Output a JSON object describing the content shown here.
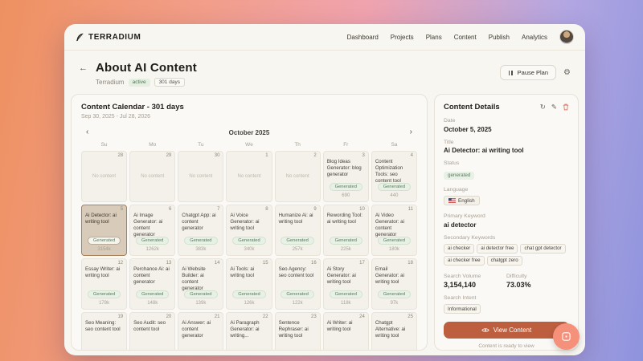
{
  "nav": {
    "brand": "TERRADIUM",
    "items": [
      "Dashboard",
      "Projects",
      "Plans",
      "Content",
      "Publish",
      "Analytics"
    ]
  },
  "header": {
    "title": "About AI Content",
    "project": "Terradium",
    "status_badge": "active",
    "days_badge": "301 days",
    "pause_button": "Pause Plan"
  },
  "calendar": {
    "title": "Content Calendar - 301 days",
    "date_range": "Sep 30, 2025 - Jul 28, 2026",
    "month": "October 2025",
    "weekdays": [
      "Su",
      "Mo",
      "Tu",
      "We",
      "Th",
      "Fr",
      "Sa"
    ],
    "no_content_label": "No content",
    "generated_label": "Generated",
    "cells": [
      {
        "day": "28",
        "type": "empty"
      },
      {
        "day": "29",
        "type": "empty"
      },
      {
        "day": "30",
        "type": "empty"
      },
      {
        "day": "1",
        "type": "empty"
      },
      {
        "day": "2",
        "type": "empty"
      },
      {
        "day": "3",
        "type": "content",
        "title": "Blog Ideas Generator: blog generator",
        "value": "690"
      },
      {
        "day": "4",
        "type": "content",
        "title": "Content Optimization Tools: seo content tool",
        "value": "440"
      },
      {
        "day": "5",
        "type": "content",
        "title": "Ai Detector: ai writing tool",
        "value": "3154k",
        "selected": true
      },
      {
        "day": "6",
        "type": "content",
        "title": "Ai Image Generator: ai content generator",
        "value": "1262k"
      },
      {
        "day": "7",
        "type": "content",
        "title": "Chatgpt App: ai content generator",
        "value": "383k"
      },
      {
        "day": "8",
        "type": "content",
        "title": "Ai Voice Generator: ai writing tool",
        "value": "340k"
      },
      {
        "day": "9",
        "type": "content",
        "title": "Humanize Ai: ai writing tool",
        "value": "257k"
      },
      {
        "day": "10",
        "type": "content",
        "title": "Rewording Tool: ai writing tool",
        "value": "225k"
      },
      {
        "day": "11",
        "type": "content",
        "title": "Ai Video Generator: ai content generator",
        "value": "180k"
      },
      {
        "day": "12",
        "type": "content",
        "title": "Essay Writer: ai writing tool",
        "value": "178k"
      },
      {
        "day": "13",
        "type": "content",
        "title": "Perchance Ai: ai content generator",
        "value": "148k"
      },
      {
        "day": "14",
        "type": "content",
        "title": "Ai Website Builder: ai content generator",
        "value": "139k"
      },
      {
        "day": "15",
        "type": "content",
        "title": "Ai Tools: ai writing tool",
        "value": "126k"
      },
      {
        "day": "16",
        "type": "content",
        "title": "Seo Agency: seo content tool",
        "value": "122k"
      },
      {
        "day": "17",
        "type": "content",
        "title": "Ai Story Generator: ai writing tool",
        "value": "118k"
      },
      {
        "day": "18",
        "type": "content",
        "title": "Email Generator: ai writing tool",
        "value": "97k"
      },
      {
        "day": "19",
        "type": "content",
        "title": "Seo Meaning: seo content tool"
      },
      {
        "day": "20",
        "type": "content",
        "title": "Seo Audit: seo content tool"
      },
      {
        "day": "21",
        "type": "content",
        "title": "Ai Answer: ai content generator"
      },
      {
        "day": "22",
        "type": "content",
        "title": "Ai Paragraph Generator: ai writing..."
      },
      {
        "day": "23",
        "type": "content",
        "title": "Sentence Rephraser: ai writing tool"
      },
      {
        "day": "24",
        "type": "content",
        "title": "Ai Writer: ai writing tool"
      },
      {
        "day": "25",
        "type": "content",
        "title": "Chatgpt Alternative: ai writing tool"
      }
    ]
  },
  "details": {
    "title": "Content Details",
    "fields": {
      "date_label": "Date",
      "date": "October 5, 2025",
      "title_label": "Title",
      "title": "Ai Detector: ai writing tool",
      "status_label": "Status",
      "status": "generated",
      "language_label": "Language",
      "language": "English",
      "primary_label": "Primary Keyword",
      "primary": "ai detector",
      "secondary_label": "Secondary Keywords",
      "secondary": [
        "ai checker",
        "ai detector free",
        "chat gpt detector",
        "ai checker free",
        "chatgpt zero"
      ],
      "volume_label": "Search Volume",
      "volume": "3,154,140",
      "difficulty_label": "Difficulty",
      "difficulty": "73.03%",
      "intent_label": "Search Intent",
      "intent": "Informational"
    },
    "view_button": "View Content",
    "footer": "Content is ready to view"
  },
  "icons": {
    "brand": "feather-quill-icon",
    "panel": [
      "refresh-icon",
      "edit-icon",
      "trash-icon"
    ],
    "view_button": "eye-icon",
    "floating": "chat-widget-icon"
  },
  "colors": {
    "accent_button": "#bd5f3f",
    "status_green": "#5a7c5e",
    "selected_cell_border": "#a9825c",
    "selected_cell_bg": "#d8cbba",
    "floating_button": "#f5907a",
    "trash_icon": "#d36a55",
    "window_bg": "#f8f6f1",
    "gradient_left": "#ee9161",
    "gradient_right": "#8e93dd"
  }
}
